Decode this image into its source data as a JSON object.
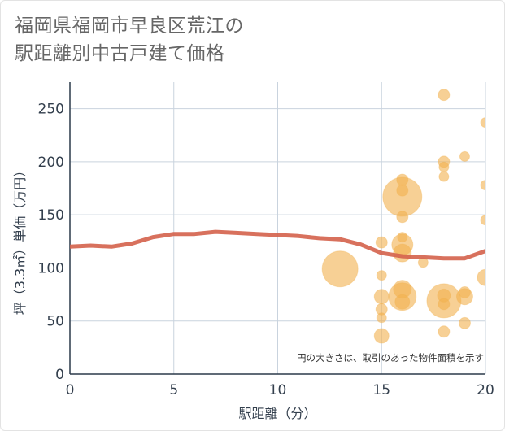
{
  "title_lines": [
    "福岡県福岡市早良区荒江の",
    "駅距離別中古戸建て価格"
  ],
  "chart_data": {
    "type": "scatter",
    "xlabel": "駅距離（分）",
    "ylabel": "坪（3.3㎡）単価（万円）",
    "xlim": [
      0,
      20
    ],
    "ylim": [
      0,
      275
    ],
    "x_ticks": [
      0,
      5,
      10,
      15,
      20
    ],
    "y_ticks": [
      0,
      50,
      100,
      150,
      200,
      250
    ],
    "grid": true,
    "note": "円の大きさは、取引のあった物件面積を示す",
    "colors": {
      "bubble": "#f1b14f",
      "line": "#d4624b",
      "grid": "#c9d3de",
      "axis_text": "#333f4d"
    },
    "bubbles": [
      {
        "x": 13,
        "y": 99,
        "size": 22
      },
      {
        "x": 15,
        "y": 124,
        "size": 7
      },
      {
        "x": 15,
        "y": 93,
        "size": 6
      },
      {
        "x": 15,
        "y": 73,
        "size": 9
      },
      {
        "x": 15,
        "y": 61,
        "size": 7
      },
      {
        "x": 15,
        "y": 53,
        "size": 6
      },
      {
        "x": 15,
        "y": 36,
        "size": 9
      },
      {
        "x": 16,
        "y": 183,
        "size": 7
      },
      {
        "x": 16,
        "y": 173,
        "size": 7
      },
      {
        "x": 16,
        "y": 167,
        "size": 24
      },
      {
        "x": 16,
        "y": 148,
        "size": 7
      },
      {
        "x": 16,
        "y": 129,
        "size": 6
      },
      {
        "x": 16,
        "y": 122,
        "size": 13
      },
      {
        "x": 16,
        "y": 114,
        "size": 11
      },
      {
        "x": 16,
        "y": 80,
        "size": 11
      },
      {
        "x": 16,
        "y": 73,
        "size": 17
      },
      {
        "x": 16,
        "y": 68,
        "size": 9
      },
      {
        "x": 17,
        "y": 105,
        "size": 6
      },
      {
        "x": 18,
        "y": 263,
        "size": 7
      },
      {
        "x": 18,
        "y": 200,
        "size": 7
      },
      {
        "x": 18,
        "y": 195,
        "size": 6
      },
      {
        "x": 18,
        "y": 186,
        "size": 6
      },
      {
        "x": 18,
        "y": 74,
        "size": 8
      },
      {
        "x": 18,
        "y": 69,
        "size": 21
      },
      {
        "x": 18,
        "y": 66,
        "size": 7
      },
      {
        "x": 18,
        "y": 40,
        "size": 7
      },
      {
        "x": 19,
        "y": 205,
        "size": 6
      },
      {
        "x": 19,
        "y": 77,
        "size": 7
      },
      {
        "x": 19,
        "y": 73,
        "size": 10
      },
      {
        "x": 19,
        "y": 48,
        "size": 7
      },
      {
        "x": 20,
        "y": 237,
        "size": 6
      },
      {
        "x": 20,
        "y": 178,
        "size": 6
      },
      {
        "x": 20,
        "y": 145,
        "size": 6
      },
      {
        "x": 20,
        "y": 91,
        "size": 10
      }
    ],
    "line": {
      "x": [
        0,
        1,
        2,
        3,
        4,
        5,
        6,
        7,
        8,
        9,
        10,
        11,
        12,
        13,
        14,
        15,
        16,
        17,
        18,
        19,
        20
      ],
      "y": [
        120,
        121,
        120,
        123,
        129,
        132,
        132,
        134,
        133,
        132,
        131,
        130,
        128,
        127,
        122,
        114,
        111,
        110,
        109,
        109,
        116
      ]
    }
  }
}
